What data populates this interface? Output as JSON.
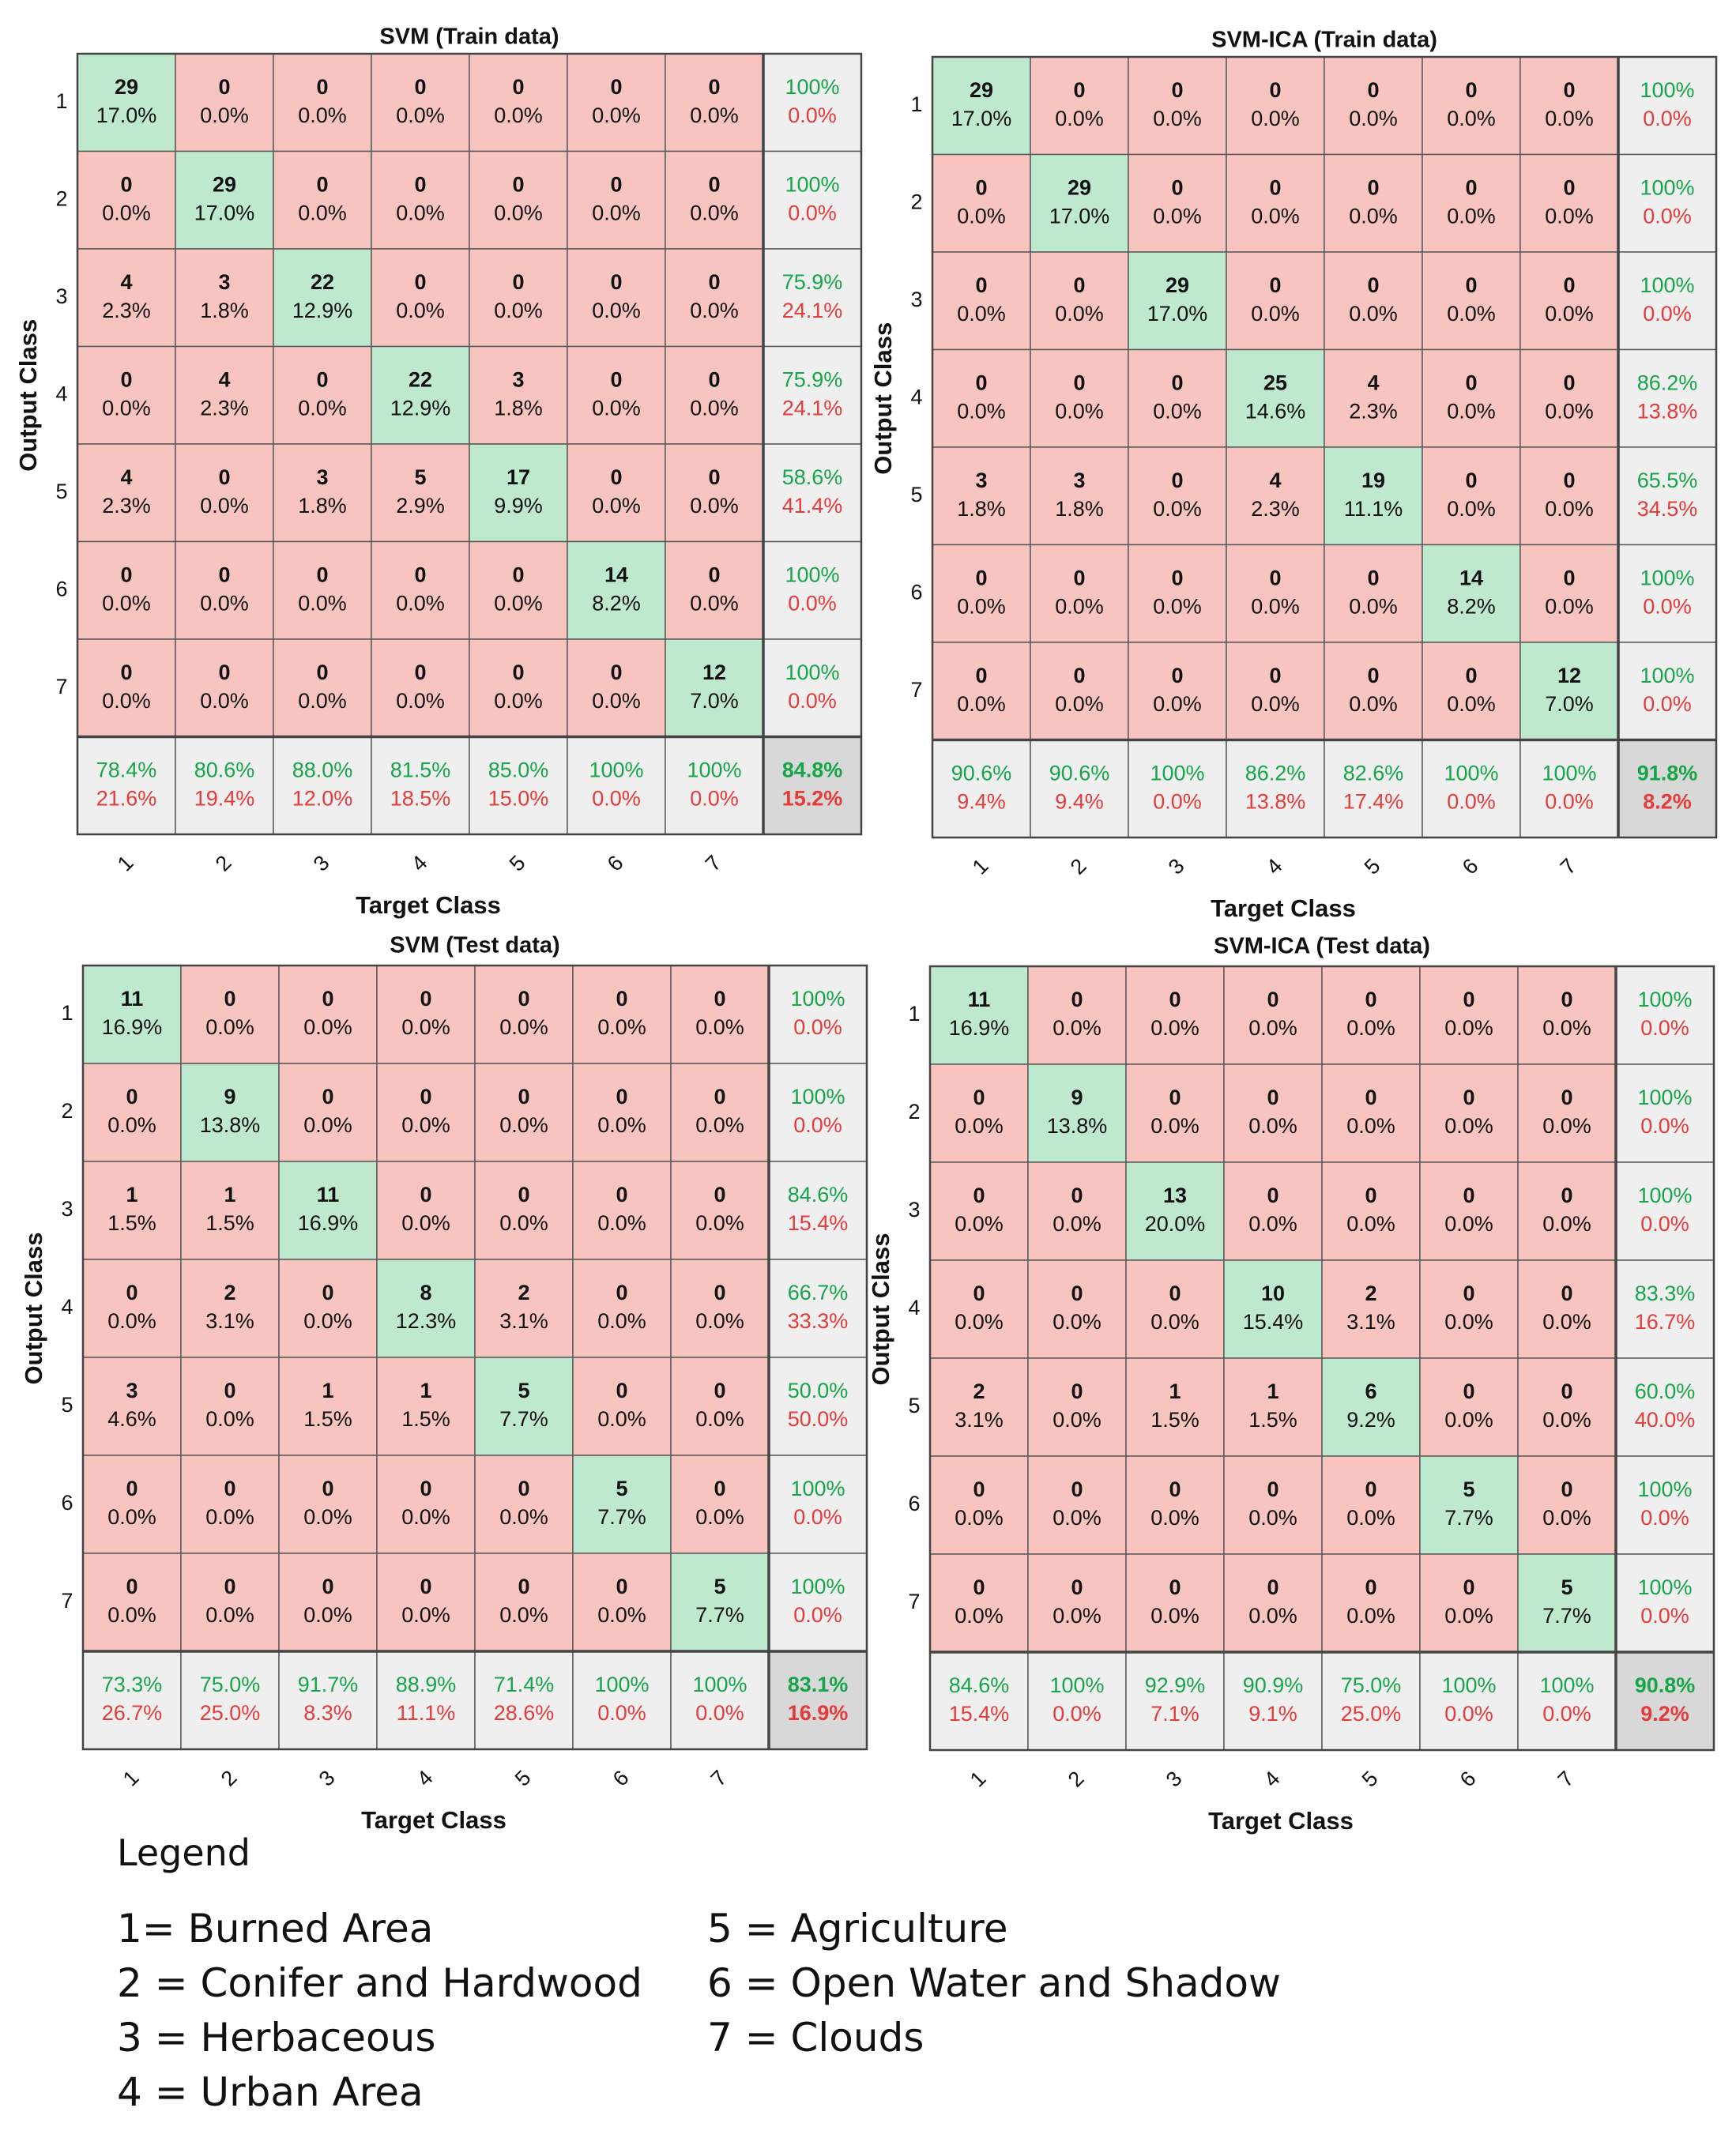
{
  "figure": {
    "x_axis_label": "Target Class",
    "y_axis_label": "Output Class",
    "class_ticks": [
      "1",
      "2",
      "3",
      "4",
      "5",
      "6",
      "7"
    ],
    "colors": {
      "correct_cell": "#bfe9cf",
      "incorrect_cell": "#f7c4c0",
      "summary_cell": "#efefef",
      "overall_cell": "#d8d8d8",
      "good_text": "#17a54a",
      "bad_text": "#e53b3b",
      "count_text": "#111111",
      "grid": "#5a5a5a"
    }
  },
  "chart_data": [
    {
      "type": "heatmap",
      "title": "SVM (Train data)",
      "xlabel": "Target Class",
      "ylabel": "Output Class",
      "classes": [
        "1",
        "2",
        "3",
        "4",
        "5",
        "6",
        "7"
      ],
      "counts": [
        [
          "29",
          "0",
          "0",
          "0",
          "0",
          "0",
          "0"
        ],
        [
          "0",
          "29",
          "0",
          "0",
          "0",
          "0",
          "0"
        ],
        [
          "4",
          "3",
          "22",
          "0",
          "0",
          "0",
          "0"
        ],
        [
          "0",
          "4",
          "0",
          "22",
          "3",
          "0",
          "0"
        ],
        [
          "4",
          "0",
          "3",
          "5",
          "17",
          "0",
          "0"
        ],
        [
          "0",
          "0",
          "0",
          "0",
          "0",
          "14",
          "0"
        ],
        [
          "0",
          "0",
          "0",
          "0",
          "0",
          "0",
          "12"
        ]
      ],
      "percents": [
        [
          "17.0%",
          "0.0%",
          "0.0%",
          "0.0%",
          "0.0%",
          "0.0%",
          "0.0%"
        ],
        [
          "0.0%",
          "17.0%",
          "0.0%",
          "0.0%",
          "0.0%",
          "0.0%",
          "0.0%"
        ],
        [
          "2.3%",
          "1.8%",
          "12.9%",
          "0.0%",
          "0.0%",
          "0.0%",
          "0.0%"
        ],
        [
          "0.0%",
          "2.3%",
          "0.0%",
          "12.9%",
          "1.8%",
          "0.0%",
          "0.0%"
        ],
        [
          "2.3%",
          "0.0%",
          "1.8%",
          "2.9%",
          "9.9%",
          "0.0%",
          "0.0%"
        ],
        [
          "0.0%",
          "0.0%",
          "0.0%",
          "0.0%",
          "0.0%",
          "8.2%",
          "0.0%"
        ],
        [
          "0.0%",
          "0.0%",
          "0.0%",
          "0.0%",
          "0.0%",
          "0.0%",
          "7.0%"
        ]
      ],
      "row_summary": [
        [
          "100%",
          "0.0%"
        ],
        [
          "100%",
          "0.0%"
        ],
        [
          "75.9%",
          "24.1%"
        ],
        [
          "75.9%",
          "24.1%"
        ],
        [
          "58.6%",
          "41.4%"
        ],
        [
          "100%",
          "0.0%"
        ],
        [
          "100%",
          "0.0%"
        ]
      ],
      "col_summary": [
        [
          "78.4%",
          "21.6%"
        ],
        [
          "80.6%",
          "19.4%"
        ],
        [
          "88.0%",
          "12.0%"
        ],
        [
          "81.5%",
          "18.5%"
        ],
        [
          "85.0%",
          "15.0%"
        ],
        [
          "100%",
          "0.0%"
        ],
        [
          "100%",
          "0.0%"
        ]
      ],
      "overall": [
        "84.8%",
        "15.2%"
      ]
    },
    {
      "type": "heatmap",
      "title": "SVM-ICA (Train data)",
      "xlabel": "Target Class",
      "ylabel": "Output Class",
      "classes": [
        "1",
        "2",
        "3",
        "4",
        "5",
        "6",
        "7"
      ],
      "counts": [
        [
          "29",
          "0",
          "0",
          "0",
          "0",
          "0",
          "0"
        ],
        [
          "0",
          "29",
          "0",
          "0",
          "0",
          "0",
          "0"
        ],
        [
          "0",
          "0",
          "29",
          "0",
          "0",
          "0",
          "0"
        ],
        [
          "0",
          "0",
          "0",
          "25",
          "4",
          "0",
          "0"
        ],
        [
          "3",
          "3",
          "0",
          "4",
          "19",
          "0",
          "0"
        ],
        [
          "0",
          "0",
          "0",
          "0",
          "0",
          "14",
          "0"
        ],
        [
          "0",
          "0",
          "0",
          "0",
          "0",
          "0",
          "12"
        ]
      ],
      "percents": [
        [
          "17.0%",
          "0.0%",
          "0.0%",
          "0.0%",
          "0.0%",
          "0.0%",
          "0.0%"
        ],
        [
          "0.0%",
          "17.0%",
          "0.0%",
          "0.0%",
          "0.0%",
          "0.0%",
          "0.0%"
        ],
        [
          "0.0%",
          "0.0%",
          "17.0%",
          "0.0%",
          "0.0%",
          "0.0%",
          "0.0%"
        ],
        [
          "0.0%",
          "0.0%",
          "0.0%",
          "14.6%",
          "2.3%",
          "0.0%",
          "0.0%"
        ],
        [
          "1.8%",
          "1.8%",
          "0.0%",
          "2.3%",
          "11.1%",
          "0.0%",
          "0.0%"
        ],
        [
          "0.0%",
          "0.0%",
          "0.0%",
          "0.0%",
          "0.0%",
          "8.2%",
          "0.0%"
        ],
        [
          "0.0%",
          "0.0%",
          "0.0%",
          "0.0%",
          "0.0%",
          "0.0%",
          "7.0%"
        ]
      ],
      "row_summary": [
        [
          "100%",
          "0.0%"
        ],
        [
          "100%",
          "0.0%"
        ],
        [
          "100%",
          "0.0%"
        ],
        [
          "86.2%",
          "13.8%"
        ],
        [
          "65.5%",
          "34.5%"
        ],
        [
          "100%",
          "0.0%"
        ],
        [
          "100%",
          "0.0%"
        ]
      ],
      "col_summary": [
        [
          "90.6%",
          "9.4%"
        ],
        [
          "90.6%",
          "9.4%"
        ],
        [
          "100%",
          "0.0%"
        ],
        [
          "86.2%",
          "13.8%"
        ],
        [
          "82.6%",
          "17.4%"
        ],
        [
          "100%",
          "0.0%"
        ],
        [
          "100%",
          "0.0%"
        ]
      ],
      "overall": [
        "91.8%",
        "8.2%"
      ]
    },
    {
      "type": "heatmap",
      "title": "SVM (Test data)",
      "xlabel": "Target Class",
      "ylabel": "Output Class",
      "classes": [
        "1",
        "2",
        "3",
        "4",
        "5",
        "6",
        "7"
      ],
      "counts": [
        [
          "11",
          "0",
          "0",
          "0",
          "0",
          "0",
          "0"
        ],
        [
          "0",
          "9",
          "0",
          "0",
          "0",
          "0",
          "0"
        ],
        [
          "1",
          "1",
          "11",
          "0",
          "0",
          "0",
          "0"
        ],
        [
          "0",
          "2",
          "0",
          "8",
          "2",
          "0",
          "0"
        ],
        [
          "3",
          "0",
          "1",
          "1",
          "5",
          "0",
          "0"
        ],
        [
          "0",
          "0",
          "0",
          "0",
          "0",
          "5",
          "0"
        ],
        [
          "0",
          "0",
          "0",
          "0",
          "0",
          "0",
          "5"
        ]
      ],
      "percents": [
        [
          "16.9%",
          "0.0%",
          "0.0%",
          "0.0%",
          "0.0%",
          "0.0%",
          "0.0%"
        ],
        [
          "0.0%",
          "13.8%",
          "0.0%",
          "0.0%",
          "0.0%",
          "0.0%",
          "0.0%"
        ],
        [
          "1.5%",
          "1.5%",
          "16.9%",
          "0.0%",
          "0.0%",
          "0.0%",
          "0.0%"
        ],
        [
          "0.0%",
          "3.1%",
          "0.0%",
          "12.3%",
          "3.1%",
          "0.0%",
          "0.0%"
        ],
        [
          "4.6%",
          "0.0%",
          "1.5%",
          "1.5%",
          "7.7%",
          "0.0%",
          "0.0%"
        ],
        [
          "0.0%",
          "0.0%",
          "0.0%",
          "0.0%",
          "0.0%",
          "7.7%",
          "0.0%"
        ],
        [
          "0.0%",
          "0.0%",
          "0.0%",
          "0.0%",
          "0.0%",
          "0.0%",
          "7.7%"
        ]
      ],
      "row_summary": [
        [
          "100%",
          "0.0%"
        ],
        [
          "100%",
          "0.0%"
        ],
        [
          "84.6%",
          "15.4%"
        ],
        [
          "66.7%",
          "33.3%"
        ],
        [
          "50.0%",
          "50.0%"
        ],
        [
          "100%",
          "0.0%"
        ],
        [
          "100%",
          "0.0%"
        ]
      ],
      "col_summary": [
        [
          "73.3%",
          "26.7%"
        ],
        [
          "75.0%",
          "25.0%"
        ],
        [
          "91.7%",
          "8.3%"
        ],
        [
          "88.9%",
          "11.1%"
        ],
        [
          "71.4%",
          "28.6%"
        ],
        [
          "100%",
          "0.0%"
        ],
        [
          "100%",
          "0.0%"
        ]
      ],
      "overall": [
        "83.1%",
        "16.9%"
      ]
    },
    {
      "type": "heatmap",
      "title": "SVM-ICA (Test data)",
      "xlabel": "Target Class",
      "ylabel": "Output Class",
      "classes": [
        "1",
        "2",
        "3",
        "4",
        "5",
        "6",
        "7"
      ],
      "counts": [
        [
          "11",
          "0",
          "0",
          "0",
          "0",
          "0",
          "0"
        ],
        [
          "0",
          "9",
          "0",
          "0",
          "0",
          "0",
          "0"
        ],
        [
          "0",
          "0",
          "13",
          "0",
          "0",
          "0",
          "0"
        ],
        [
          "0",
          "0",
          "0",
          "10",
          "2",
          "0",
          "0"
        ],
        [
          "2",
          "0",
          "1",
          "1",
          "6",
          "0",
          "0"
        ],
        [
          "0",
          "0",
          "0",
          "0",
          "0",
          "5",
          "0"
        ],
        [
          "0",
          "0",
          "0",
          "0",
          "0",
          "0",
          "5"
        ]
      ],
      "percents": [
        [
          "16.9%",
          "0.0%",
          "0.0%",
          "0.0%",
          "0.0%",
          "0.0%",
          "0.0%"
        ],
        [
          "0.0%",
          "13.8%",
          "0.0%",
          "0.0%",
          "0.0%",
          "0.0%",
          "0.0%"
        ],
        [
          "0.0%",
          "0.0%",
          "20.0%",
          "0.0%",
          "0.0%",
          "0.0%",
          "0.0%"
        ],
        [
          "0.0%",
          "0.0%",
          "0.0%",
          "15.4%",
          "3.1%",
          "0.0%",
          "0.0%"
        ],
        [
          "3.1%",
          "0.0%",
          "1.5%",
          "1.5%",
          "9.2%",
          "0.0%",
          "0.0%"
        ],
        [
          "0.0%",
          "0.0%",
          "0.0%",
          "0.0%",
          "0.0%",
          "7.7%",
          "0.0%"
        ],
        [
          "0.0%",
          "0.0%",
          "0.0%",
          "0.0%",
          "0.0%",
          "0.0%",
          "7.7%"
        ]
      ],
      "row_summary": [
        [
          "100%",
          "0.0%"
        ],
        [
          "100%",
          "0.0%"
        ],
        [
          "100%",
          "0.0%"
        ],
        [
          "83.3%",
          "16.7%"
        ],
        [
          "60.0%",
          "40.0%"
        ],
        [
          "100%",
          "0.0%"
        ],
        [
          "100%",
          "0.0%"
        ]
      ],
      "col_summary": [
        [
          "84.6%",
          "15.4%"
        ],
        [
          "100%",
          "0.0%"
        ],
        [
          "92.9%",
          "7.1%"
        ],
        [
          "90.9%",
          "9.1%"
        ],
        [
          "75.0%",
          "25.0%"
        ],
        [
          "100%",
          "0.0%"
        ],
        [
          "100%",
          "0.0%"
        ]
      ],
      "overall": [
        "90.8%",
        "9.2%"
      ]
    }
  ],
  "legend": {
    "title": "Legend",
    "items": [
      "1= Burned Area",
      "2 = Conifer and Hardwood",
      "3 = Herbaceous",
      "4 = Urban Area",
      "5 = Agriculture",
      "6 = Open Water and Shadow",
      "7 = Clouds"
    ]
  }
}
